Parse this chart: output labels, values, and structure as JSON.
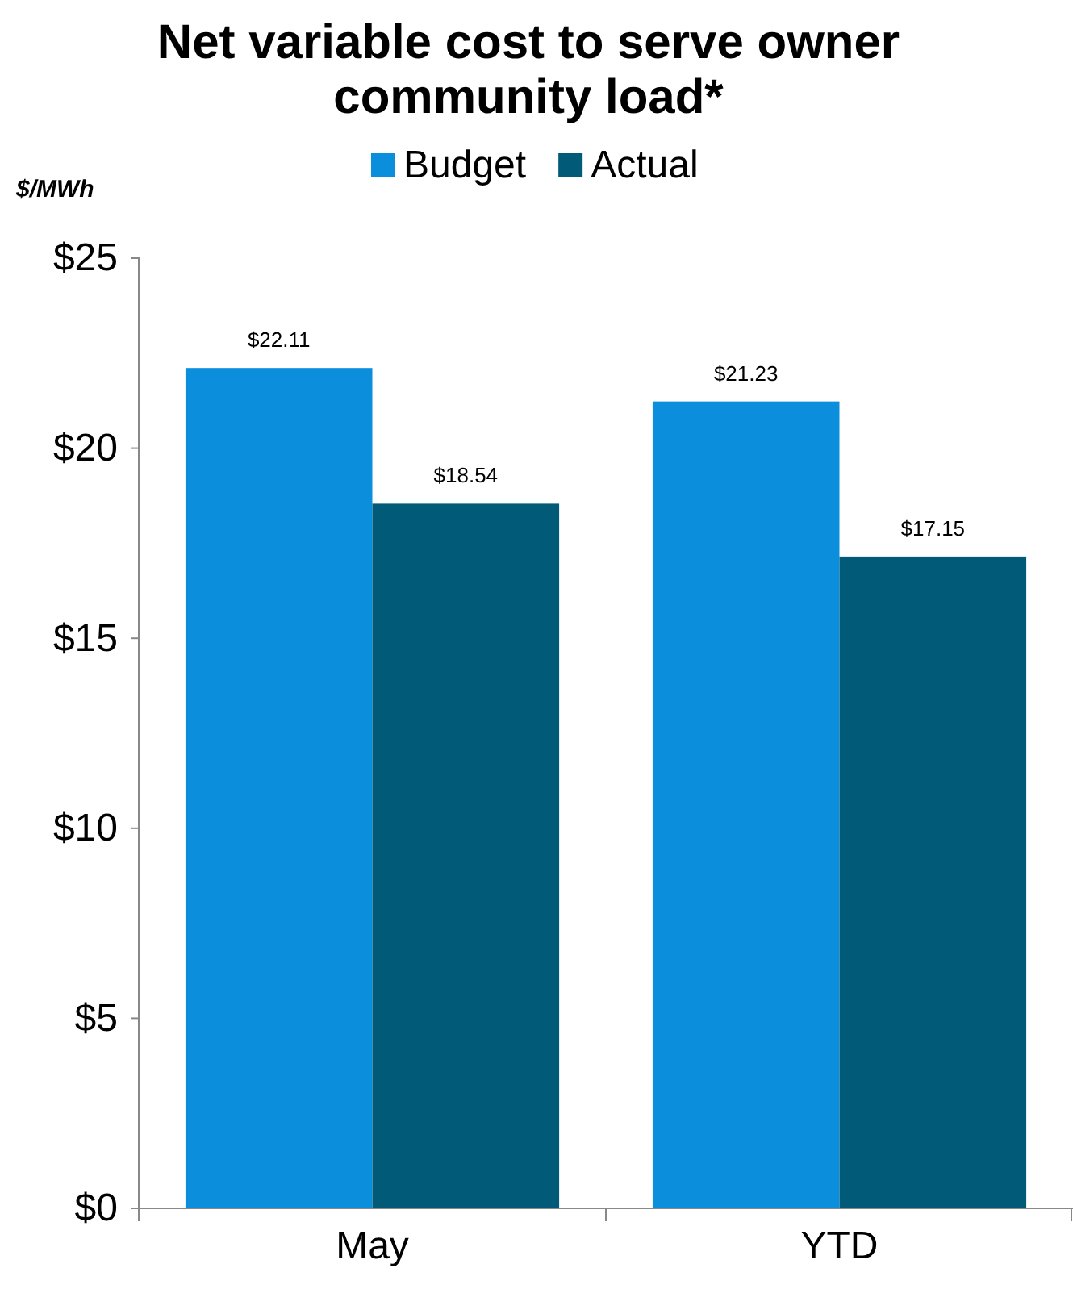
{
  "chart_data": {
    "type": "bar",
    "title": "Net variable cost to serve owner community load*",
    "ylabel": "$/MWh",
    "categories": [
      "May",
      "YTD"
    ],
    "series": [
      {
        "name": "Budget",
        "color": "#0b8fdc",
        "values": [
          22.11,
          21.23
        ],
        "value_labels": [
          "$22.11",
          "$21.23"
        ]
      },
      {
        "name": "Actual",
        "color": "#005a78",
        "values": [
          18.54,
          17.15
        ],
        "value_labels": [
          "$18.54",
          "$17.15"
        ]
      }
    ],
    "ylim": [
      0,
      25
    ],
    "yticks": [
      {
        "value": 0,
        "label": "$0"
      },
      {
        "value": 5,
        "label": "$5"
      },
      {
        "value": 10,
        "label": "$10"
      },
      {
        "value": 15,
        "label": "$15"
      },
      {
        "value": 20,
        "label": "$20"
      },
      {
        "value": 25,
        "label": "$25"
      }
    ],
    "grid": false,
    "legend": "top"
  }
}
